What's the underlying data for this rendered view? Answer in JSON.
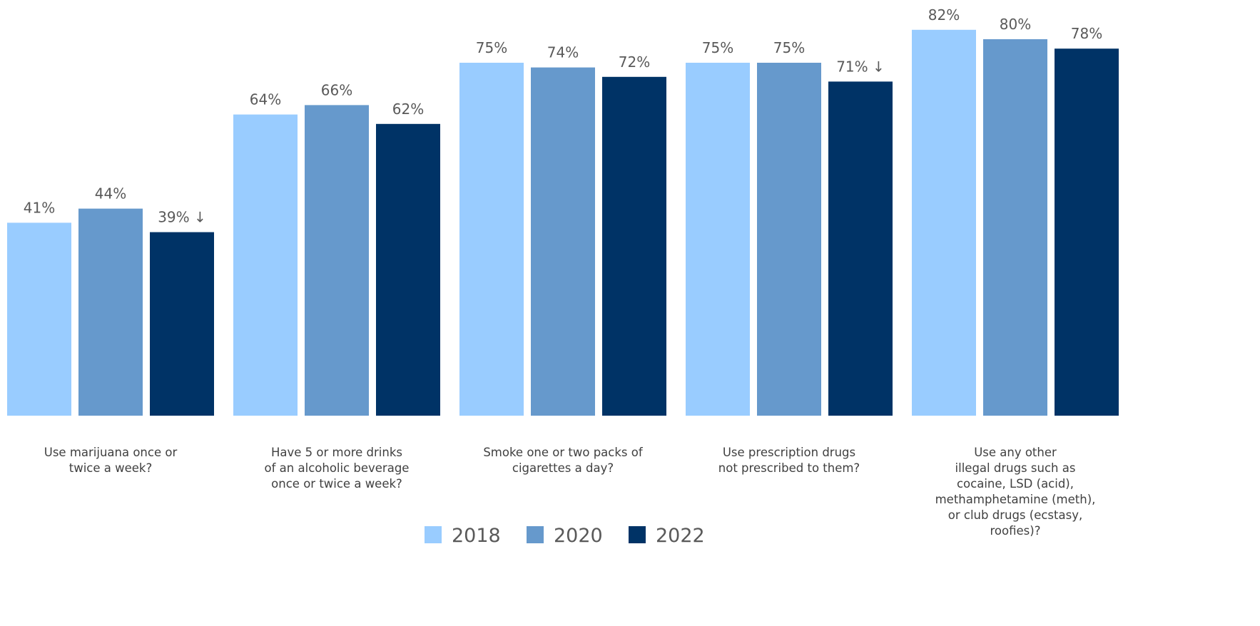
{
  "chart_data": {
    "type": "bar",
    "title": "",
    "xlabel": "",
    "ylabel": "",
    "ylim": [
      0,
      82
    ],
    "grid": false,
    "legend_position": "bottom-center",
    "categories": [
      [
        "Use marijuana once or",
        "twice a week?"
      ],
      [
        "Have 5 or more drinks",
        "of an alcoholic beverage",
        "once or twice a week?"
      ],
      [
        "Smoke one or two packs of",
        "cigarettes a day?"
      ],
      [
        "Use prescription drugs",
        "not prescribed to them?"
      ],
      [
        "Use any other",
        "illegal drugs such as",
        "cocaine, LSD (acid),",
        "methamphetamine (meth),",
        "or club drugs (ecstasy,",
        "roofies)?"
      ]
    ],
    "series": [
      {
        "name": "2018",
        "color": "#99CCFF",
        "values": [
          41,
          64,
          75,
          75,
          82
        ],
        "labels": [
          "41%",
          "64%",
          "75%",
          "75%",
          "82%"
        ]
      },
      {
        "name": "2020",
        "color": "#6699CC",
        "values": [
          44,
          66,
          74,
          75,
          80
        ],
        "labels": [
          "44%",
          "66%",
          "74%",
          "75%",
          "80%"
        ]
      },
      {
        "name": "2022",
        "color": "#003366",
        "values": [
          39,
          62,
          72,
          71,
          78
        ],
        "labels": [
          "39% ↓",
          "62%",
          "72%",
          "71% ↓",
          "78%"
        ]
      }
    ]
  }
}
